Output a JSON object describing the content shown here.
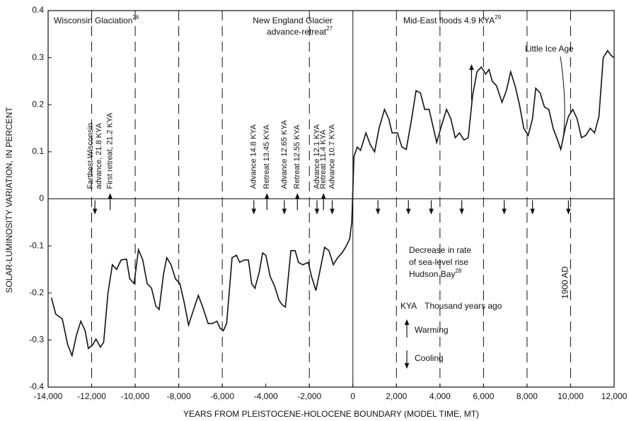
{
  "chart_data": {
    "type": "line",
    "xlabel": "YEARS FROM PLEISTOCENE-HOLOCENE BOUNDARY (MODEL TIME, MT)",
    "ylabel": "SOLAR-LUMINOSITY VARIATION, IN PERCENT",
    "xlim": [
      -14000,
      12000
    ],
    "ylim": [
      -0.4,
      0.4
    ],
    "xticks": [
      {
        "value": -14000,
        "label": "-14,000"
      },
      {
        "value": -12000,
        "label": "-12,000"
      },
      {
        "value": -10000,
        "label": "-10,000"
      },
      {
        "value": -8000,
        "label": "-8,000"
      },
      {
        "value": -6000,
        "label": "-6,000"
      },
      {
        "value": -4000,
        "label": "-4,000"
      },
      {
        "value": -2000,
        "label": "-2,000"
      },
      0,
      {
        "value": 2000,
        "label": "2,000"
      },
      {
        "value": 4000,
        "label": "4,000"
      },
      {
        "value": 6000,
        "label": "6,000"
      },
      {
        "value": 8000,
        "label": "8,000"
      },
      {
        "value": 10000,
        "label": "10,000"
      },
      {
        "value": 12000,
        "label": "12,000"
      }
    ],
    "yticks": [
      -0.4,
      -0.3,
      -0.2,
      -0.1,
      0,
      0.1,
      0.2,
      0.3,
      0.4
    ],
    "dashed_lines": [
      -12000,
      -10000,
      -8000,
      -6000,
      -2000,
      2000,
      4000,
      6000,
      8000,
      10000
    ],
    "solid_vline": 0,
    "solid_hline": 0,
    "color": "#111111",
    "x": [
      -13850,
      -13650,
      -13350,
      -13100,
      -12900,
      -12700,
      -12500,
      -12300,
      -12150,
      -11950,
      -11800,
      -11600,
      -11450,
      -11250,
      -11050,
      -10850,
      -10650,
      -10400,
      -10250,
      -10050,
      -9850,
      -9650,
      -9450,
      -9250,
      -9050,
      -8900,
      -8700,
      -8550,
      -8350,
      -8150,
      -7950,
      -7750,
      -7550,
      -7350,
      -7100,
      -6900,
      -6650,
      -6450,
      -6250,
      -6100,
      -5950,
      -5800,
      -5550,
      -5350,
      -5200,
      -5000,
      -4800,
      -4650,
      -4500,
      -4300,
      -4150,
      -4000,
      -3800,
      -3600,
      -3400,
      -3250,
      -3100,
      -2850,
      -2650,
      -2500,
      -2300,
      -2050,
      -1900,
      -1700,
      -1500,
      -1300,
      -1100,
      -900,
      -700,
      -500,
      -300,
      -150,
      -50,
      50,
      200,
      350,
      600,
      800,
      1000,
      1200,
      1450,
      1650,
      1800,
      2050,
      2250,
      2450,
      2700,
      2900,
      3100,
      3300,
      3500,
      3700,
      3850,
      4100,
      4300,
      4500,
      4700,
      4900,
      5100,
      5300,
      5500,
      5700,
      5900,
      6100,
      6250,
      6400,
      6600,
      6850,
      7050,
      7250,
      7450,
      7650,
      7850,
      8050,
      8250,
      8400,
      8600,
      8800,
      9000,
      9200,
      9400,
      9550,
      9750,
      9900,
      10100,
      10300,
      10500,
      10700,
      10900,
      11100,
      11300,
      11500,
      11700,
      11850,
      12000
    ],
    "values": [
      -0.21,
      -0.245,
      -0.255,
      -0.31,
      -0.333,
      -0.29,
      -0.26,
      -0.28,
      -0.318,
      -0.31,
      -0.298,
      -0.315,
      -0.305,
      -0.2,
      -0.14,
      -0.15,
      -0.13,
      -0.128,
      -0.17,
      -0.18,
      -0.108,
      -0.13,
      -0.18,
      -0.19,
      -0.228,
      -0.235,
      -0.16,
      -0.125,
      -0.14,
      -0.17,
      -0.18,
      -0.22,
      -0.268,
      -0.24,
      -0.205,
      -0.23,
      -0.265,
      -0.265,
      -0.26,
      -0.275,
      -0.28,
      -0.265,
      -0.125,
      -0.12,
      -0.135,
      -0.13,
      -0.13,
      -0.18,
      -0.19,
      -0.155,
      -0.115,
      -0.12,
      -0.165,
      -0.185,
      -0.215,
      -0.225,
      -0.23,
      -0.11,
      -0.11,
      -0.135,
      -0.14,
      -0.135,
      -0.165,
      -0.195,
      -0.15,
      -0.103,
      -0.11,
      -0.14,
      -0.125,
      -0.115,
      -0.1,
      -0.085,
      -0.05,
      0.09,
      0.11,
      0.103,
      0.14,
      0.115,
      0.1,
      0.15,
      0.19,
      0.17,
      0.14,
      0.14,
      0.11,
      0.105,
      0.17,
      0.23,
      0.225,
      0.19,
      0.19,
      0.15,
      0.12,
      0.16,
      0.19,
      0.17,
      0.13,
      0.14,
      0.125,
      0.13,
      0.22,
      0.27,
      0.28,
      0.265,
      0.275,
      0.25,
      0.24,
      0.205,
      0.23,
      0.27,
      0.24,
      0.2,
      0.15,
      0.135,
      0.17,
      0.235,
      0.225,
      0.195,
      0.19,
      0.15,
      0.125,
      0.105,
      0.15,
      0.175,
      0.19,
      0.17,
      0.13,
      0.135,
      0.15,
      0.14,
      0.175,
      0.3,
      0.315,
      0.305,
      0.3
    ],
    "periods": [
      {
        "lines": [
          "Wisconsin Glaciation"
        ],
        "ref": "26"
      },
      {
        "lines": [
          "New England Glacier",
          "advance-retreat"
        ],
        "ref": "27"
      },
      {
        "lines": [
          "Mid-East floods 4.9 KYA"
        ],
        "ref": "29"
      }
    ],
    "events": [
      {
        "x": -11850,
        "direction": "down",
        "lines": [
          "Farthest Wisconsin",
          "advance, 21.8 KYA"
        ]
      },
      {
        "x": -11150,
        "direction": "up",
        "lines": [
          "First retreat, 21.2 KYA"
        ]
      },
      {
        "x": -4550,
        "direction": "down",
        "lines": [
          "Advance 14.8 KYA"
        ]
      },
      {
        "x": -3950,
        "direction": "up",
        "lines": [
          "Retreat 13.45 KYA"
        ]
      },
      {
        "x": -3150,
        "direction": "down",
        "lines": [
          "Advance 12.65 KYA"
        ]
      },
      {
        "x": -2550,
        "direction": "up",
        "lines": [
          "Retreat 12.55 KYA"
        ]
      },
      {
        "x": -1650,
        "direction": "down",
        "lines": [
          "Advance 12.1 KYA"
        ]
      },
      {
        "x": -1350,
        "direction": "up",
        "lines": [
          "Retreat 11.4 KYA"
        ]
      },
      {
        "x": -950,
        "direction": "down",
        "lines": [
          "Advance 10.7 KYA"
        ]
      },
      {
        "x": 1150,
        "direction": "down"
      },
      {
        "x": 2550,
        "direction": "down"
      },
      {
        "x": 3600,
        "direction": "down"
      },
      {
        "x": 5000,
        "direction": "down"
      },
      {
        "x": 6950,
        "direction": "down"
      },
      {
        "x": 8250,
        "direction": "down"
      },
      {
        "x": 9900,
        "direction": "down"
      }
    ],
    "sea_level_note": {
      "lines": [
        "Decrease in rate",
        "of sea-level rise",
        "Hudson Bay"
      ],
      "ref": "28"
    },
    "legend": {
      "abbr": "KYA",
      "meaning": "Thousand years ago",
      "up": "Warming",
      "down": "Cooling"
    },
    "year_marker": "1900 AD",
    "little_ice_age": "Little Ice Age"
  }
}
